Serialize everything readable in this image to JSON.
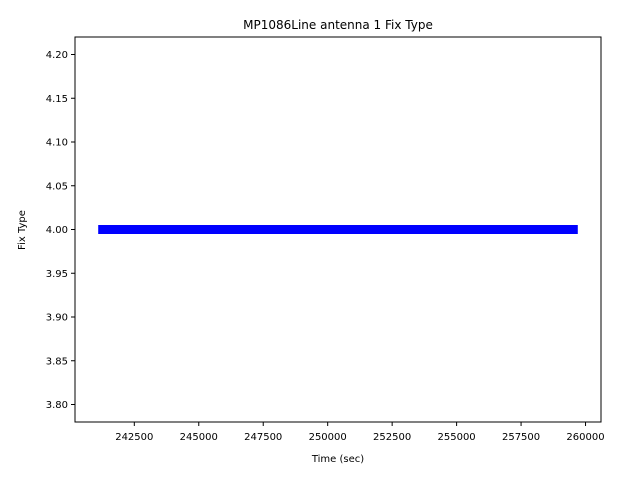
{
  "chart_data": {
    "type": "line",
    "title": "MP1086Line antenna 1 Fix Type",
    "x_label": "Time (sec)",
    "y_label": "Fix Type",
    "x": [
      241100,
      259700
    ],
    "series": [
      {
        "color": "#0000ff",
        "values": [
          4,
          4
        ]
      }
    ],
    "xlim": [
      240200,
      260600
    ],
    "xticks": [
      242500,
      245000,
      247500,
      250000,
      252500,
      255000,
      257500,
      260000
    ],
    "ylim": [
      3.78,
      4.22
    ],
    "yticks": [
      {
        "value": 3.8,
        "label": "3.80"
      },
      3.85,
      {
        "value": 3.9,
        "label": "3.90"
      },
      3.95,
      {
        "value": 4,
        "label": "4.00"
      },
      4.05,
      {
        "value": 4.1,
        "label": "4.10"
      },
      4.15,
      {
        "value": 4.2,
        "label": "4.20"
      }
    ],
    "grid": false
  }
}
